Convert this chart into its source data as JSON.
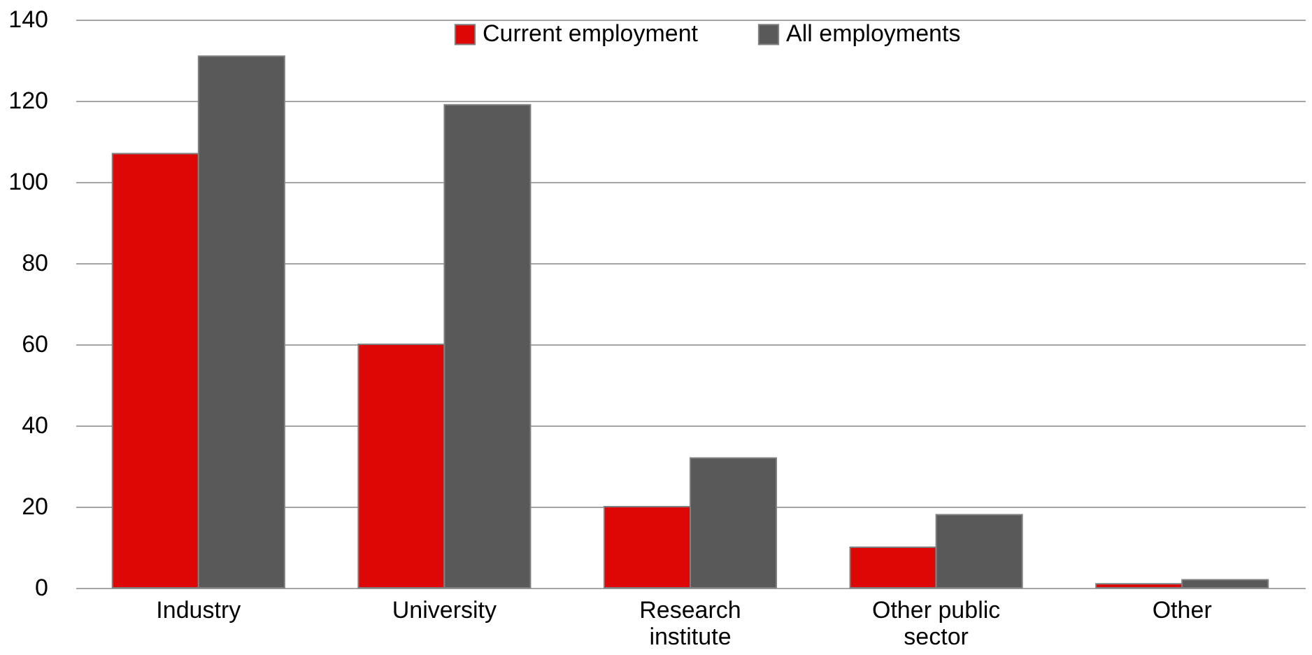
{
  "chart_data": {
    "type": "bar",
    "categories": [
      "Industry",
      "University",
      "Research institute",
      "Other public sector",
      "Other"
    ],
    "series": [
      {
        "name": "Current employment",
        "color": "#dd0806",
        "values": [
          107,
          60,
          20,
          10,
          1
        ]
      },
      {
        "name": "All employments",
        "color": "#595959",
        "values": [
          131,
          119,
          32,
          18,
          2
        ]
      }
    ],
    "ylim": [
      0,
      140
    ],
    "yticks": [
      0,
      20,
      40,
      60,
      80,
      100,
      120,
      140
    ],
    "grid": "y",
    "legend": "top"
  }
}
